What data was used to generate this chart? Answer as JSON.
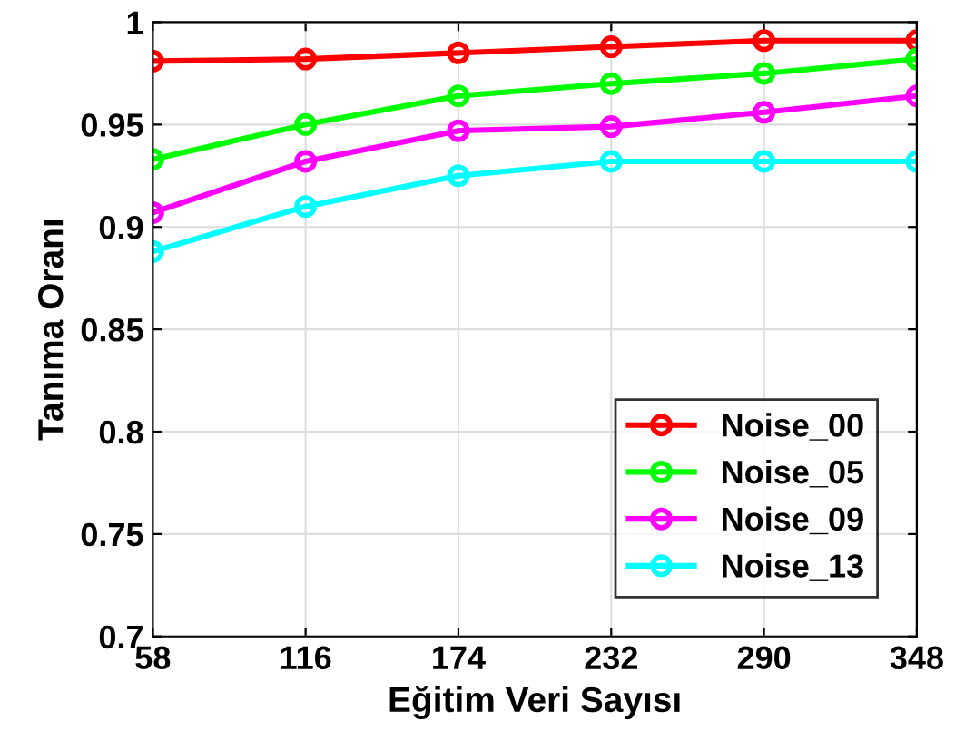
{
  "chart_data": {
    "type": "line",
    "xlabel": "Eğitim Veri Sayısı",
    "ylabel": "Tanıma Oranı",
    "x": [
      58,
      116,
      174,
      232,
      290,
      348
    ],
    "xlim": [
      58,
      348
    ],
    "xticks": [
      58,
      116,
      174,
      232,
      290,
      348
    ],
    "ylim": [
      0.7,
      1
    ],
    "yticks": [
      0.7,
      0.75,
      0.8,
      0.85,
      0.9,
      0.95,
      1
    ],
    "grid": true,
    "legend": "bottom right",
    "marker": "circle",
    "line_style": "solid",
    "series": [
      {
        "name": "Noise_00",
        "color": "#ff0000",
        "values": [
          0.981,
          0.982,
          0.985,
          0.988,
          0.991,
          0.991
        ]
      },
      {
        "name": "Noise_05",
        "color": "#00ff00",
        "values": [
          0.933,
          0.95,
          0.964,
          0.97,
          0.975,
          0.982
        ]
      },
      {
        "name": "Noise_09",
        "color": "#ff00ff",
        "values": [
          0.907,
          0.932,
          0.947,
          0.949,
          0.956,
          0.964
        ]
      },
      {
        "name": "Noise_13",
        "color": "#00ffff",
        "values": [
          0.888,
          0.91,
          0.925,
          0.932,
          0.932,
          0.932
        ]
      }
    ]
  }
}
